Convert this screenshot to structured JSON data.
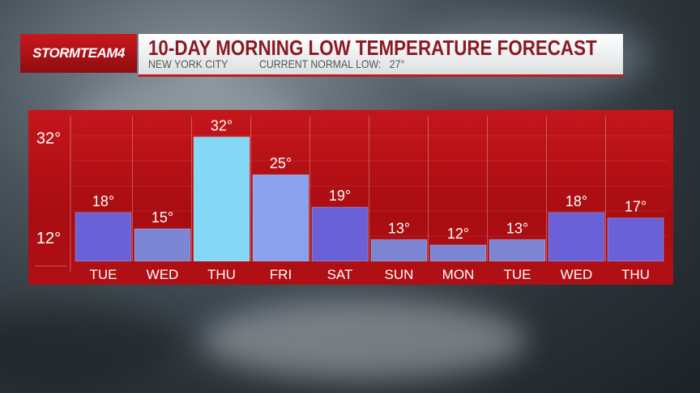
{
  "header": {
    "logo_text": "STORMTEAM4",
    "title": "10-DAY MORNING LOW TEMPERATURE FORECAST",
    "location": "NEW YORK CITY",
    "normal_label": "CURRENT NORMAL LOW:",
    "normal_value": "27°"
  },
  "chart_data": {
    "type": "bar",
    "title": "10-DAY MORNING LOW TEMPERATURE FORECAST",
    "categories": [
      "TUE",
      "WED",
      "THU",
      "FRI",
      "SAT",
      "SUN",
      "MON",
      "TUE",
      "WED",
      "THU"
    ],
    "values": [
      18,
      15,
      32,
      25,
      19,
      13,
      12,
      13,
      18,
      17
    ],
    "value_labels": [
      "18°",
      "15°",
      "32°",
      "25°",
      "19°",
      "13°",
      "12°",
      "13°",
      "18°",
      "17°"
    ],
    "y_ticks": [
      {
        "value": 32,
        "label": "32°"
      },
      {
        "value": 12,
        "label": "12°"
      }
    ],
    "ylim": [
      9,
      37
    ],
    "grid": true,
    "colors": {
      "low": "#6a60d8",
      "mid": "#8aa2ee",
      "high": "#84d8f6",
      "panel": "#b81216"
    }
  }
}
